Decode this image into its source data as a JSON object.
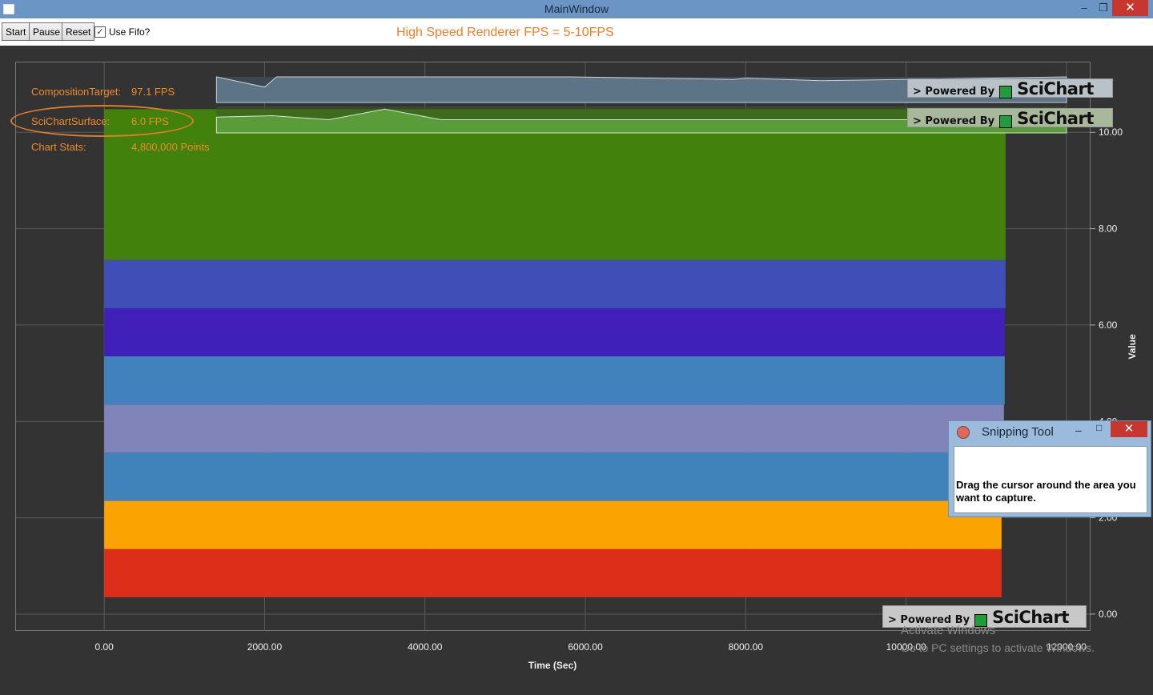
{
  "window": {
    "title": "MainWindow",
    "minimize": "–",
    "restore": "❐",
    "close": "✕"
  },
  "toolbar": {
    "start_label": "Start",
    "pause_label": "Pause",
    "reset_label": "Reset",
    "fifo_checked": true,
    "fifo_check_glyph": "✓",
    "fifo_label": "Use Fifo?",
    "heading": "High Speed Renderer FPS = 5-10FPS"
  },
  "stats": {
    "composition_label": "CompositionTarget:",
    "composition_value": "97.1 FPS",
    "surface_label": "SciChartSurface:",
    "surface_value": "6.0 FPS",
    "points_label": "Chart Stats:",
    "points_value": "4,800,000 Points"
  },
  "branding": {
    "powered_by": "> Powered By",
    "logo": "SciChart"
  },
  "watermark": {
    "line1": "Activate Windows",
    "line2": "Go to PC settings to activate Windows."
  },
  "snipping_tool": {
    "title": "Snipping Tool",
    "minimize": "–",
    "maximize": "□",
    "close": "✕",
    "message": "Drag the cursor around the area you want to capture."
  },
  "chart_data": {
    "type": "area",
    "xlabel": "Time (Sec)",
    "ylabel": "Value",
    "xlim": [
      -1100,
      12300
    ],
    "ylim": [
      -0.35,
      11.45
    ],
    "x_ticks": [
      "0.00",
      "2000.00",
      "4000.00",
      "6000.00",
      "8000.00",
      "10000.00",
      "12000.00"
    ],
    "x_tick_values": [
      0,
      2000,
      4000,
      6000,
      8000,
      10000,
      12000
    ],
    "y_ticks": [
      "0.00",
      "2.00",
      "4.00",
      "6.00",
      "8.00",
      "10.00"
    ],
    "y_tick_values": [
      0,
      2,
      4,
      6,
      8,
      10
    ],
    "grid": true,
    "series": [
      {
        "color": "#dd2e1a",
        "y0": 0.35,
        "y1": 1.35,
        "x_end": 11190
      },
      {
        "color": "#fba300",
        "y0": 1.35,
        "y1": 2.35,
        "x_end": 11190
      },
      {
        "color": "#4083ba",
        "y0": 2.35,
        "y1": 3.35,
        "x_end": 11210
      },
      {
        "color": "#8184b8",
        "y0": 3.35,
        "y1": 4.35,
        "x_end": 11220
      },
      {
        "color": "#4282bc",
        "y0": 4.35,
        "y1": 5.35,
        "x_end": 11230
      },
      {
        "color": "#3f20b8",
        "y0": 5.35,
        "y1": 6.35,
        "x_end": 11230
      },
      {
        "color": "#3f4fb7",
        "y0": 6.35,
        "y1": 7.35,
        "x_end": 11240
      },
      {
        "color": "#42810c",
        "y0": 7.35,
        "y1": 10.48,
        "x_end": 11240
      }
    ],
    "composition_fps_chart": {
      "color": "#5c7485",
      "x": [
        1400,
        2000,
        2150,
        5800,
        7850,
        8000,
        8950,
        12000
      ],
      "fps": [
        100,
        96,
        100,
        100,
        99,
        99.5,
        98.5,
        100
      ]
    },
    "surface_fps_chart": {
      "color": "#5a9b3a",
      "x": [
        1400,
        2100,
        2800,
        3500,
        4200,
        12000
      ],
      "fps": [
        6,
        6.5,
        5,
        9,
        5,
        5
      ]
    }
  }
}
